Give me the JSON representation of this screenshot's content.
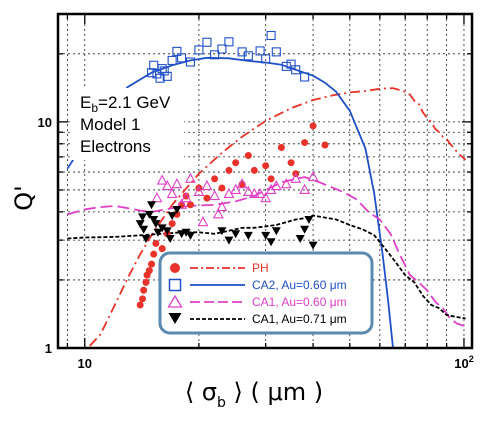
{
  "chart_data": {
    "type": "scatter",
    "xscale": "log",
    "yscale": "log",
    "xlim": [
      8.5,
      105
    ],
    "ylim": [
      1,
      30
    ],
    "grid": true,
    "xlabel": "⟨ σb ⟩ ( μm )",
    "xlabel_parts": [
      "⟨ σ",
      "b",
      " ⟩ ( μm )"
    ],
    "ylabel": "Q'",
    "xticks": [
      {
        "value": 10,
        "label": "10"
      },
      {
        "value": 100,
        "label": "10",
        "sup": "2"
      }
    ],
    "yticks": [
      {
        "value": 1,
        "label": "1"
      },
      {
        "value": 10,
        "label": "10"
      }
    ],
    "annotation": {
      "line1_main": "E",
      "line1_sub": "b",
      "line1_rest": "=2.1 GeV",
      "line2": "Model 1",
      "line3": "Electrons"
    },
    "series": [
      {
        "name": "PH",
        "color": "#e8322a",
        "marker": "filled-circle",
        "line_style": "dash-dot",
        "points": [
          [
            14,
            1.55
          ],
          [
            14.2,
            1.65
          ],
          [
            14.3,
            1.8
          ],
          [
            14.5,
            1.95
          ],
          [
            14.6,
            2.1
          ],
          [
            14.8,
            2.2
          ],
          [
            15,
            2.35
          ],
          [
            15.2,
            2.6
          ],
          [
            15.4,
            2.9
          ],
          [
            16,
            2.75
          ],
          [
            16.5,
            3.2
          ],
          [
            17,
            3.55
          ],
          [
            17.5,
            3.9
          ],
          [
            18,
            4.3
          ],
          [
            18.5,
            4.7
          ],
          [
            19,
            4.3
          ],
          [
            20,
            5.1
          ],
          [
            21,
            4.6
          ],
          [
            22,
            5.6
          ],
          [
            23,
            5.1
          ],
          [
            24,
            6.1
          ],
          [
            25,
            6.6
          ],
          [
            26,
            5.3
          ],
          [
            27,
            7.1
          ],
          [
            28,
            6.1
          ],
          [
            30,
            6.4
          ],
          [
            31,
            5.6
          ],
          [
            33,
            7.7
          ],
          [
            35,
            6.6
          ],
          [
            36,
            5.9
          ],
          [
            38,
            8.1
          ],
          [
            40,
            9.6
          ],
          [
            43,
            7.9
          ]
        ],
        "line": [
          [
            9.5,
            0.88
          ],
          [
            11,
            1.15
          ],
          [
            12,
            1.55
          ],
          [
            13,
            2.05
          ],
          [
            14,
            2.6
          ],
          [
            15,
            3.15
          ],
          [
            17,
            4.3
          ],
          [
            20,
            5.9
          ],
          [
            23,
            7.3
          ],
          [
            26,
            8.6
          ],
          [
            30,
            10.1
          ],
          [
            35,
            11.5
          ],
          [
            40,
            12.5
          ],
          [
            45,
            13.1
          ],
          [
            50,
            13.5
          ],
          [
            55,
            13.7
          ],
          [
            60,
            14.0
          ],
          [
            65,
            14.1
          ],
          [
            70,
            13.6
          ],
          [
            72,
            13.2
          ],
          [
            74,
            12.4
          ],
          [
            76,
            12.0
          ],
          [
            78,
            11.0
          ],
          [
            80,
            10.4
          ],
          [
            82,
            10.0
          ],
          [
            84,
            9.3
          ],
          [
            86,
            9.0
          ],
          [
            88,
            8.6
          ],
          [
            90,
            8.4
          ],
          [
            92,
            8.0
          ],
          [
            95,
            7.5
          ],
          [
            98,
            7.1
          ],
          [
            101,
            6.8
          ]
        ]
      },
      {
        "name": "CA2, Au=0.60 μm",
        "color": "#2050c8",
        "marker": "open-square",
        "line_style": "solid",
        "points": [
          [
            15,
            16.5
          ],
          [
            15.2,
            17.8
          ],
          [
            15.5,
            16.3
          ],
          [
            15.8,
            15.6
          ],
          [
            16,
            17.2
          ],
          [
            16.2,
            16.8
          ],
          [
            16.5,
            15.9
          ],
          [
            17,
            18.7
          ],
          [
            17.5,
            20.5
          ],
          [
            18,
            19.2
          ],
          [
            19,
            18.4
          ],
          [
            20,
            20.8
          ],
          [
            21,
            22.5
          ],
          [
            22,
            19.8
          ],
          [
            23,
            21.0
          ],
          [
            24,
            22.6
          ],
          [
            26,
            20.4
          ],
          [
            27,
            19.6
          ],
          [
            29,
            20.6
          ],
          [
            30,
            19.0
          ],
          [
            31,
            24.1
          ],
          [
            32,
            20.4
          ],
          [
            34,
            17.6
          ],
          [
            35,
            18.0
          ],
          [
            36,
            17.0
          ],
          [
            38,
            15.8
          ]
        ],
        "line": [
          [
            9,
            6.2
          ],
          [
            10,
            8.2
          ],
          [
            11,
            10.5
          ],
          [
            12,
            12.6
          ],
          [
            13,
            14.3
          ],
          [
            15,
            16.5
          ],
          [
            17,
            17.8
          ],
          [
            19,
            18.7
          ],
          [
            21,
            19.2
          ],
          [
            24,
            19.1
          ],
          [
            27,
            18.6
          ],
          [
            30,
            18.3
          ],
          [
            33,
            17.9
          ],
          [
            36,
            17.0
          ],
          [
            40,
            16.0
          ],
          [
            43,
            14.9
          ],
          [
            46,
            13.6
          ],
          [
            50,
            11.2
          ],
          [
            55,
            7.6
          ],
          [
            58,
            4.8
          ],
          [
            61,
            2.6
          ],
          [
            63,
            1.65
          ],
          [
            65,
            1.0
          ]
        ]
      },
      {
        "name": "CA1, Au=0.60 μm",
        "color": "#e040c8",
        "marker": "open-triangle",
        "line_style": "dash",
        "points": [
          [
            15.5,
            4.6
          ],
          [
            16,
            5.5
          ],
          [
            16.5,
            5.2
          ],
          [
            17,
            4.8
          ],
          [
            17.5,
            5.3
          ],
          [
            18,
            4.3
          ],
          [
            18.5,
            4.6
          ],
          [
            19,
            5.6
          ],
          [
            20,
            4.9
          ],
          [
            20.5,
            3.6
          ],
          [
            21,
            5.2
          ],
          [
            22,
            4.7
          ],
          [
            22.5,
            3.9
          ],
          [
            23,
            4.2
          ],
          [
            24,
            4.8
          ],
          [
            25,
            5.0
          ],
          [
            26,
            5.3
          ],
          [
            27,
            4.9
          ],
          [
            28,
            4.8
          ],
          [
            29,
            4.8
          ],
          [
            30,
            4.6
          ],
          [
            31,
            5.0
          ],
          [
            32,
            5.2
          ],
          [
            34,
            5.3
          ],
          [
            36,
            5.6
          ],
          [
            38,
            5.0
          ],
          [
            40,
            5.7
          ]
        ],
        "line": [
          [
            9,
            3.9
          ],
          [
            10,
            4.1
          ],
          [
            11,
            4.2
          ],
          [
            12,
            4.25
          ],
          [
            13,
            4.15
          ],
          [
            14,
            4.05
          ],
          [
            15,
            4.0
          ],
          [
            17,
            4.15
          ],
          [
            19,
            4.25
          ],
          [
            22,
            4.3
          ],
          [
            25,
            4.45
          ],
          [
            28,
            4.7
          ],
          [
            30,
            5.0
          ],
          [
            33,
            5.4
          ],
          [
            36,
            5.6
          ],
          [
            38,
            5.7
          ],
          [
            40,
            5.55
          ],
          [
            44,
            5.2
          ],
          [
            48,
            4.9
          ],
          [
            52,
            4.55
          ],
          [
            56,
            4.0
          ],
          [
            60,
            3.7
          ],
          [
            64,
            3.2
          ],
          [
            68,
            2.55
          ],
          [
            72,
            2.1
          ],
          [
            76,
            1.95
          ],
          [
            80,
            1.8
          ],
          [
            84,
            1.6
          ],
          [
            88,
            1.5
          ],
          [
            92,
            1.35
          ],
          [
            96,
            1.28
          ],
          [
            101,
            1.25
          ]
        ]
      },
      {
        "name": "CA1, Au=0.71 μm",
        "color": "#000000",
        "marker": "filled-triangle-down",
        "line_style": "dot",
        "points": [
          [
            14,
            3.55
          ],
          [
            14.2,
            3.8
          ],
          [
            14.3,
            3.35
          ],
          [
            14.5,
            3.05
          ],
          [
            14.8,
            3.9
          ],
          [
            15,
            4.3
          ],
          [
            15.2,
            3.7
          ],
          [
            15.4,
            3.55
          ],
          [
            15.6,
            3.25
          ],
          [
            16,
            3.4
          ],
          [
            16.5,
            3.3
          ],
          [
            16.8,
            3.05
          ],
          [
            17,
            3.85
          ],
          [
            17.5,
            4.1
          ],
          [
            18,
            3.2
          ],
          [
            18.5,
            3.25
          ],
          [
            19,
            3.15
          ],
          [
            23,
            3.3
          ],
          [
            24,
            3.0
          ],
          [
            25,
            3.2
          ],
          [
            27,
            3.15
          ],
          [
            30,
            3.15
          ],
          [
            31,
            2.95
          ],
          [
            32,
            3.3
          ],
          [
            37,
            3.05
          ],
          [
            38,
            3.35
          ],
          [
            39,
            3.7
          ],
          [
            40,
            2.85
          ]
        ],
        "line": [
          [
            9,
            3.05
          ],
          [
            10,
            3.08
          ],
          [
            12,
            3.1
          ],
          [
            14,
            3.15
          ],
          [
            16,
            3.2
          ],
          [
            18,
            3.25
          ],
          [
            20,
            3.25
          ],
          [
            22,
            3.2
          ],
          [
            24,
            3.3
          ],
          [
            26,
            3.4
          ],
          [
            28,
            3.4
          ],
          [
            30,
            3.45
          ],
          [
            32,
            3.5
          ],
          [
            34,
            3.6
          ],
          [
            36,
            3.7
          ],
          [
            38,
            3.75
          ],
          [
            40,
            3.85
          ],
          [
            42,
            3.8
          ],
          [
            46,
            3.7
          ],
          [
            50,
            3.5
          ],
          [
            54,
            3.35
          ],
          [
            58,
            3.15
          ],
          [
            62,
            2.75
          ],
          [
            66,
            2.4
          ],
          [
            70,
            2.1
          ],
          [
            74,
            1.95
          ],
          [
            78,
            1.7
          ],
          [
            82,
            1.55
          ],
          [
            86,
            1.5
          ],
          [
            90,
            1.4
          ],
          [
            96,
            1.37
          ],
          [
            101,
            1.35
          ]
        ]
      }
    ],
    "legend": {
      "placement": "bottom-center",
      "border_color": "#5a8ab0",
      "entries": [
        "PH",
        "CA2, Au=0.60 μm",
        "CA1, Au=0.60 μm",
        "CA1, Au=0.71 μm"
      ]
    }
  }
}
